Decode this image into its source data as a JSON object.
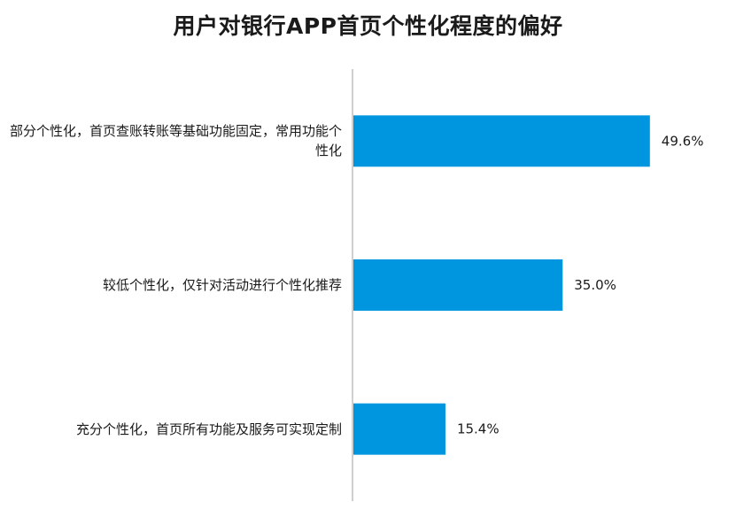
{
  "chart_data": {
    "type": "bar",
    "orientation": "horizontal",
    "title": "用户对银行APP首页个性化程度的偏好",
    "categories": [
      "部分个性化，首页查账转账等基础功能固定，常用功能个性化",
      "较低个性化，仅针对活动进行个性化推荐",
      "充分个性化，首页所有功能及服务可实现定制"
    ],
    "values": [
      49.6,
      35.0,
      15.4
    ],
    "value_labels": [
      "49.6%",
      "35.0%",
      "15.4%"
    ],
    "unit": "%",
    "xlim": [
      0,
      60
    ],
    "grid": false,
    "legend": "none",
    "bar_color": "#0096DF",
    "axis_color": "#BFBFBF"
  }
}
